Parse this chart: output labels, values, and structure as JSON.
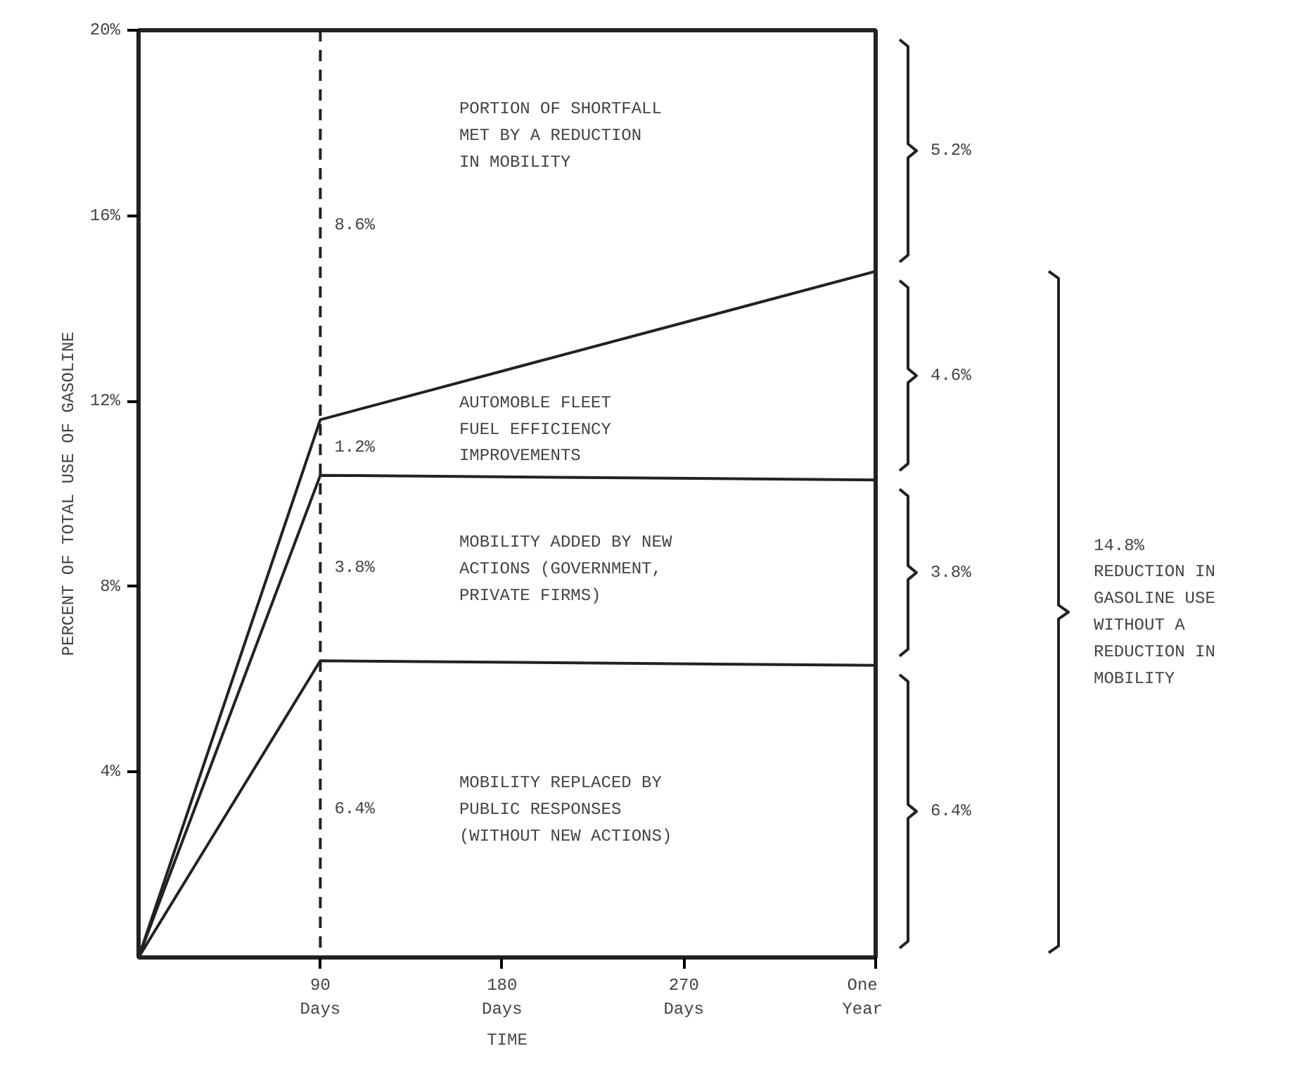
{
  "chart_data": {
    "type": "line",
    "xlabel": "TIME",
    "ylabel": "PERCENT OF TOTAL USE OF GASOLINE",
    "x": [
      0,
      90,
      365
    ],
    "series": [
      {
        "color": "#222222",
        "values": [
          0,
          6.4,
          6.3
        ]
      },
      {
        "color": "#222222",
        "values": [
          0,
          10.4,
          10.3
        ]
      },
      {
        "color": "#222222",
        "values": [
          0,
          11.6,
          14.8
        ]
      }
    ],
    "xlim": [
      0,
      365
    ],
    "ylim": [
      0,
      20
    ],
    "xticks": [
      {
        "value": 90,
        "label": "90\nDays"
      },
      {
        "value": 180,
        "label": "180\nDays"
      },
      {
        "value": 270,
        "label": "270\nDays"
      },
      {
        "value": 365,
        "label": "One\nYear"
      }
    ],
    "yticks": [
      {
        "value": 4,
        "label": "4%"
      },
      {
        "value": 8,
        "label": "8%"
      },
      {
        "value": 12,
        "label": "12%"
      },
      {
        "value": 16,
        "label": "16%"
      },
      {
        "value": 20,
        "label": "20%"
      }
    ],
    "ref_lines": [
      {
        "axis": "x",
        "value": 90,
        "line_style": "dashed",
        "color": "#222222"
      }
    ],
    "grid": false,
    "marker": "none",
    "line_style": "solid",
    "annotations": [
      "PORTION OF SHORTFALL\nMET BY A REDUCTION\nIN MOBILITY",
      "8.6%",
      "AUTOMOBLE FLEET\nFUEL EFFICIENCY\nIMPROVEMENTS",
      "1.2%",
      "MOBILITY ADDED BY NEW\nACTIONS (GOVERNMENT,\nPRIVATE FIRMS)",
      "3.8%",
      "MOBILITY REPLACED BY\nPUBLIC RESPONSES\n(WITHOUT NEW ACTIONS)",
      "6.4%",
      "5.2%",
      "4.6%",
      "3.8%",
      "6.4%",
      "14.8%\nREDUCTION IN\nGASOLINE USE\nWITHOUT A\nREDUCTION IN\nMOBILITY"
    ]
  }
}
